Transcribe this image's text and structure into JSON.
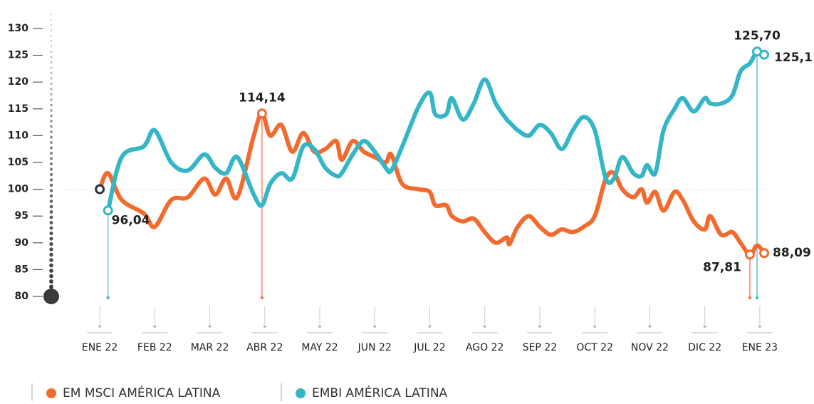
{
  "chart_data": {
    "type": "line",
    "x": [
      0,
      0.15,
      0.4,
      0.8,
      1.0,
      1.3,
      1.6,
      1.9,
      2.1,
      2.3,
      2.5,
      2.8,
      2.95,
      3.1,
      3.3,
      3.5,
      3.7,
      3.9,
      4.1,
      4.3,
      4.4,
      4.6,
      4.8,
      5.0,
      5.2,
      5.3,
      5.5,
      5.8,
      6.0,
      6.1,
      6.3,
      6.4,
      6.6,
      6.8,
      7.0,
      7.2,
      7.4,
      7.45,
      7.6,
      7.8,
      8.0,
      8.2,
      8.4,
      8.6,
      8.8,
      9.0,
      9.2,
      9.35,
      9.5,
      9.7,
      9.85,
      9.95,
      10.1,
      10.25,
      10.45,
      10.6,
      10.8,
      11.0,
      11.1,
      11.3,
      11.5,
      11.65,
      11.82,
      11.95,
      12.08
    ],
    "series": [
      {
        "name": "EM MSCI AMÉRICA LATINA",
        "color": "#f26a2e",
        "values": [
          100,
          103,
          98,
          95.5,
          93,
          98,
          98.5,
          102,
          99,
          102,
          98.5,
          110,
          114.14,
          110,
          112,
          107,
          110.5,
          107,
          107.5,
          109,
          105.5,
          109,
          107,
          106,
          105,
          106.5,
          101,
          100,
          99.5,
          97,
          97,
          95,
          94,
          94.5,
          92,
          90,
          91,
          89.8,
          93,
          95,
          93,
          91.5,
          92.5,
          92,
          93,
          95,
          102,
          103,
          100,
          98.5,
          100,
          97.5,
          99.5,
          96,
          99.5,
          98,
          94,
          92.5,
          95,
          91.5,
          92,
          90,
          87.81,
          89.5,
          88.09
        ]
      },
      {
        "name": "EMBI AMÉRICA LATINA",
        "color": "#35b6c7",
        "values": [
          null,
          96.04,
          106,
          108,
          111,
          105,
          103.5,
          106.5,
          104,
          103,
          106,
          99,
          97,
          101,
          103,
          102,
          108,
          107.5,
          104,
          102.5,
          103,
          106.5,
          109,
          107,
          104,
          103.5,
          108,
          115.5,
          118,
          114,
          114,
          117,
          113,
          116,
          120.5,
          116,
          113,
          112.5,
          111,
          110,
          112,
          110.5,
          107.5,
          111,
          113.5,
          111,
          102,
          102,
          106,
          103,
          102.5,
          104.5,
          103,
          111,
          115,
          117,
          114.5,
          117,
          116,
          116,
          117.5,
          122,
          123.5,
          125.7,
          125.11
        ]
      }
    ],
    "xlim": [
      -0.26,
      12.17
    ],
    "xticks": [
      {
        "value": 0,
        "label": "ENE 22"
      },
      {
        "value": 1,
        "label": "FEB 22"
      },
      {
        "value": 2,
        "label": "MAR 22"
      },
      {
        "value": 3,
        "label": "ABR 22"
      },
      {
        "value": 4,
        "label": "MAY 22"
      },
      {
        "value": 5,
        "label": "JUN 22"
      },
      {
        "value": 6,
        "label": "JUL 22"
      },
      {
        "value": 7,
        "label": "AGO 22"
      },
      {
        "value": 8,
        "label": "SEP 22"
      },
      {
        "value": 9,
        "label": "OCT 22"
      },
      {
        "value": 10,
        "label": "NOV 22"
      },
      {
        "value": 11,
        "label": "DIC 22"
      },
      {
        "value": 12,
        "label": "ENE 23"
      }
    ],
    "ylim": [
      80,
      130
    ],
    "yticks": [
      80,
      85,
      90,
      95,
      100,
      105,
      110,
      115,
      120,
      125,
      130
    ],
    "reference": 100,
    "annotations": [
      {
        "series": 1,
        "x": 0.15,
        "value": 96.04,
        "label": "96,04"
      },
      {
        "series": 0,
        "x": 2.95,
        "value": 114.14,
        "label": "114,14"
      },
      {
        "series": 0,
        "x": 11.82,
        "value": 87.81,
        "label": "87,81"
      },
      {
        "series": 0,
        "x": 12.08,
        "value": 88.09,
        "label": "88,09"
      },
      {
        "series": 1,
        "x": 11.95,
        "value": 125.7,
        "label": "125,70"
      },
      {
        "series": 1,
        "x": 12.08,
        "value": 125.11,
        "label": "125,11"
      }
    ]
  }
}
